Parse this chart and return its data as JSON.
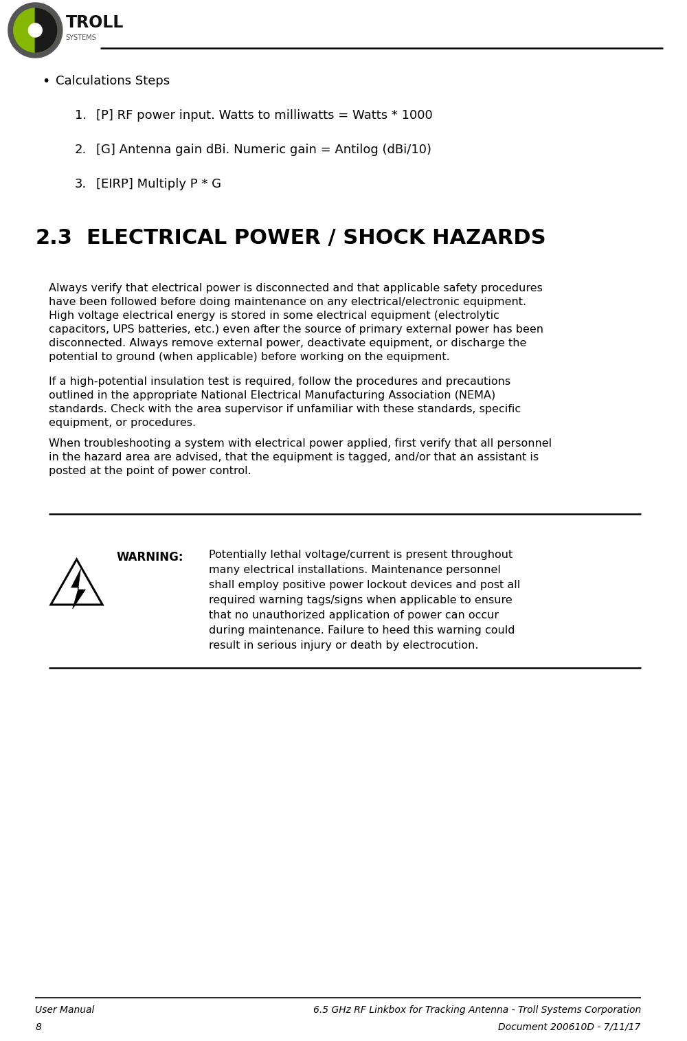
{
  "bullet_heading": "Calculations Steps",
  "numbered_items": [
    "[P] RF power input. Watts to milliwatts = Watts * 1000",
    "[G] Antenna gain dBi. Numeric gain = Antilog (dBi/10)",
    "[EIRP] Multiply P * G"
  ],
  "section_number": "2.3",
  "section_title": "ELECTRICAL POWER / SHOCK HAZARDS",
  "para1": "Always verify that electrical power is disconnected and that applicable safety procedures\nhave been followed before doing maintenance on any electrical/electronic equipment.\nHigh voltage electrical energy is stored in some electrical equipment (electrolytic\ncapacitors, UPS batteries, etc.) even after the source of primary external power has been\ndisconnected. Always remove external power, deactivate equipment, or discharge the\npotential to ground (when applicable) before working on the equipment.",
  "para2": "If a high-potential insulation test is required, follow the procedures and precautions\noutlined in the appropriate National Electrical Manufacturing Association (NEMA)\nstandards. Check with the area supervisor if unfamiliar with these standards, specific\nequipment, or procedures.",
  "para3": "When troubleshooting a system with electrical power applied, first verify that all personnel\nin the hazard area are advised, that the equipment is tagged, and/or that an assistant is\nposted at the point of power control.",
  "warning_label": "WARNING:",
  "warning_text": "Potentially lethal voltage/current is present throughout\nmany electrical installations. Maintenance personnel\nshall employ positive power lockout devices and post all\nrequired warning tags/signs when applicable to ensure\nthat no unauthorized application of power can occur\nduring maintenance. Failure to heed this warning could\nresult in serious injury or death by electrocution.",
  "footer_left1": "User Manual",
  "footer_left2": "8",
  "footer_right1": "6.5 GHz RF Linkbox for Tracking Antenna - Troll Systems Corporation",
  "footer_right2": "Document 200610D - 7/11/17",
  "bg_color": "#ffffff",
  "text_color": "#000000",
  "header_line_color": "#000000",
  "footer_line_color": "#000000"
}
